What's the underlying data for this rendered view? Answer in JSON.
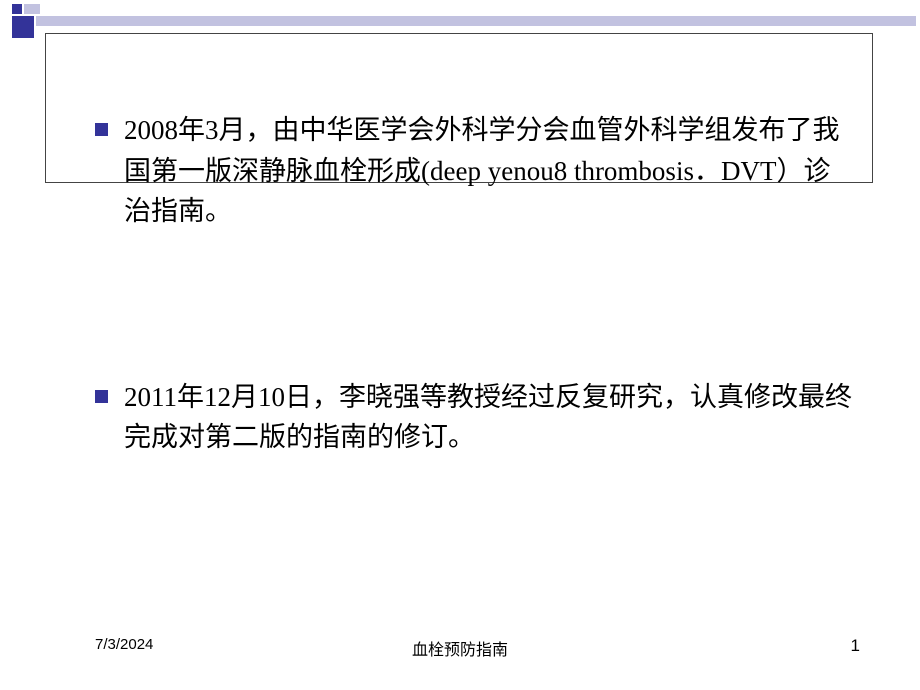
{
  "decoration": {
    "dark_color": "#333399",
    "light_color": "#c2c2e0"
  },
  "bullets": [
    {
      "text": "2008年3月，由中华医学会外科学分会血管外科学组发布了我国第一版深静脉血栓形成(deep yenou8 thrombosis．DVT）诊治指南。"
    },
    {
      "text": "2011年12月10日，李晓强等教授经过反复研究，认真修改最终完成对第二版的指南的修订。"
    }
  ],
  "footer": {
    "date": "7/3/2024",
    "title": "血栓预防指南",
    "page": "1"
  }
}
